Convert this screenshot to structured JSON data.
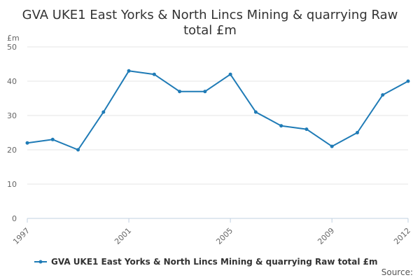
{
  "chart_data": {
    "type": "line",
    "title_lines": [
      "GVA UKE1 East Yorks & North Lincs Mining & quarrying Raw",
      "total £m"
    ],
    "ylabel": "£m",
    "xlabel": "",
    "ylim": [
      0,
      50
    ],
    "yticks": [
      0,
      10,
      20,
      30,
      40,
      50
    ],
    "xlim": [
      1997,
      2012
    ],
    "xticks": [
      "1997",
      "2001",
      "2005",
      "2009",
      "2012"
    ],
    "x": [
      1997,
      1998,
      1999,
      2000,
      2001,
      2002,
      2003,
      2004,
      2005,
      2006,
      2007,
      2008,
      2009,
      2010,
      2011,
      2012
    ],
    "series": [
      {
        "name": "GVA UKE1 East Yorks & North Lincs Mining & quarrying Raw total £m",
        "color": "#1f7bb6",
        "values": [
          22,
          23,
          20,
          31,
          43,
          42,
          37,
          37,
          42,
          31,
          27,
          26,
          21,
          25,
          36,
          40
        ]
      }
    ],
    "grid": true,
    "legend_position": "bottom",
    "source_label": "Source:"
  }
}
